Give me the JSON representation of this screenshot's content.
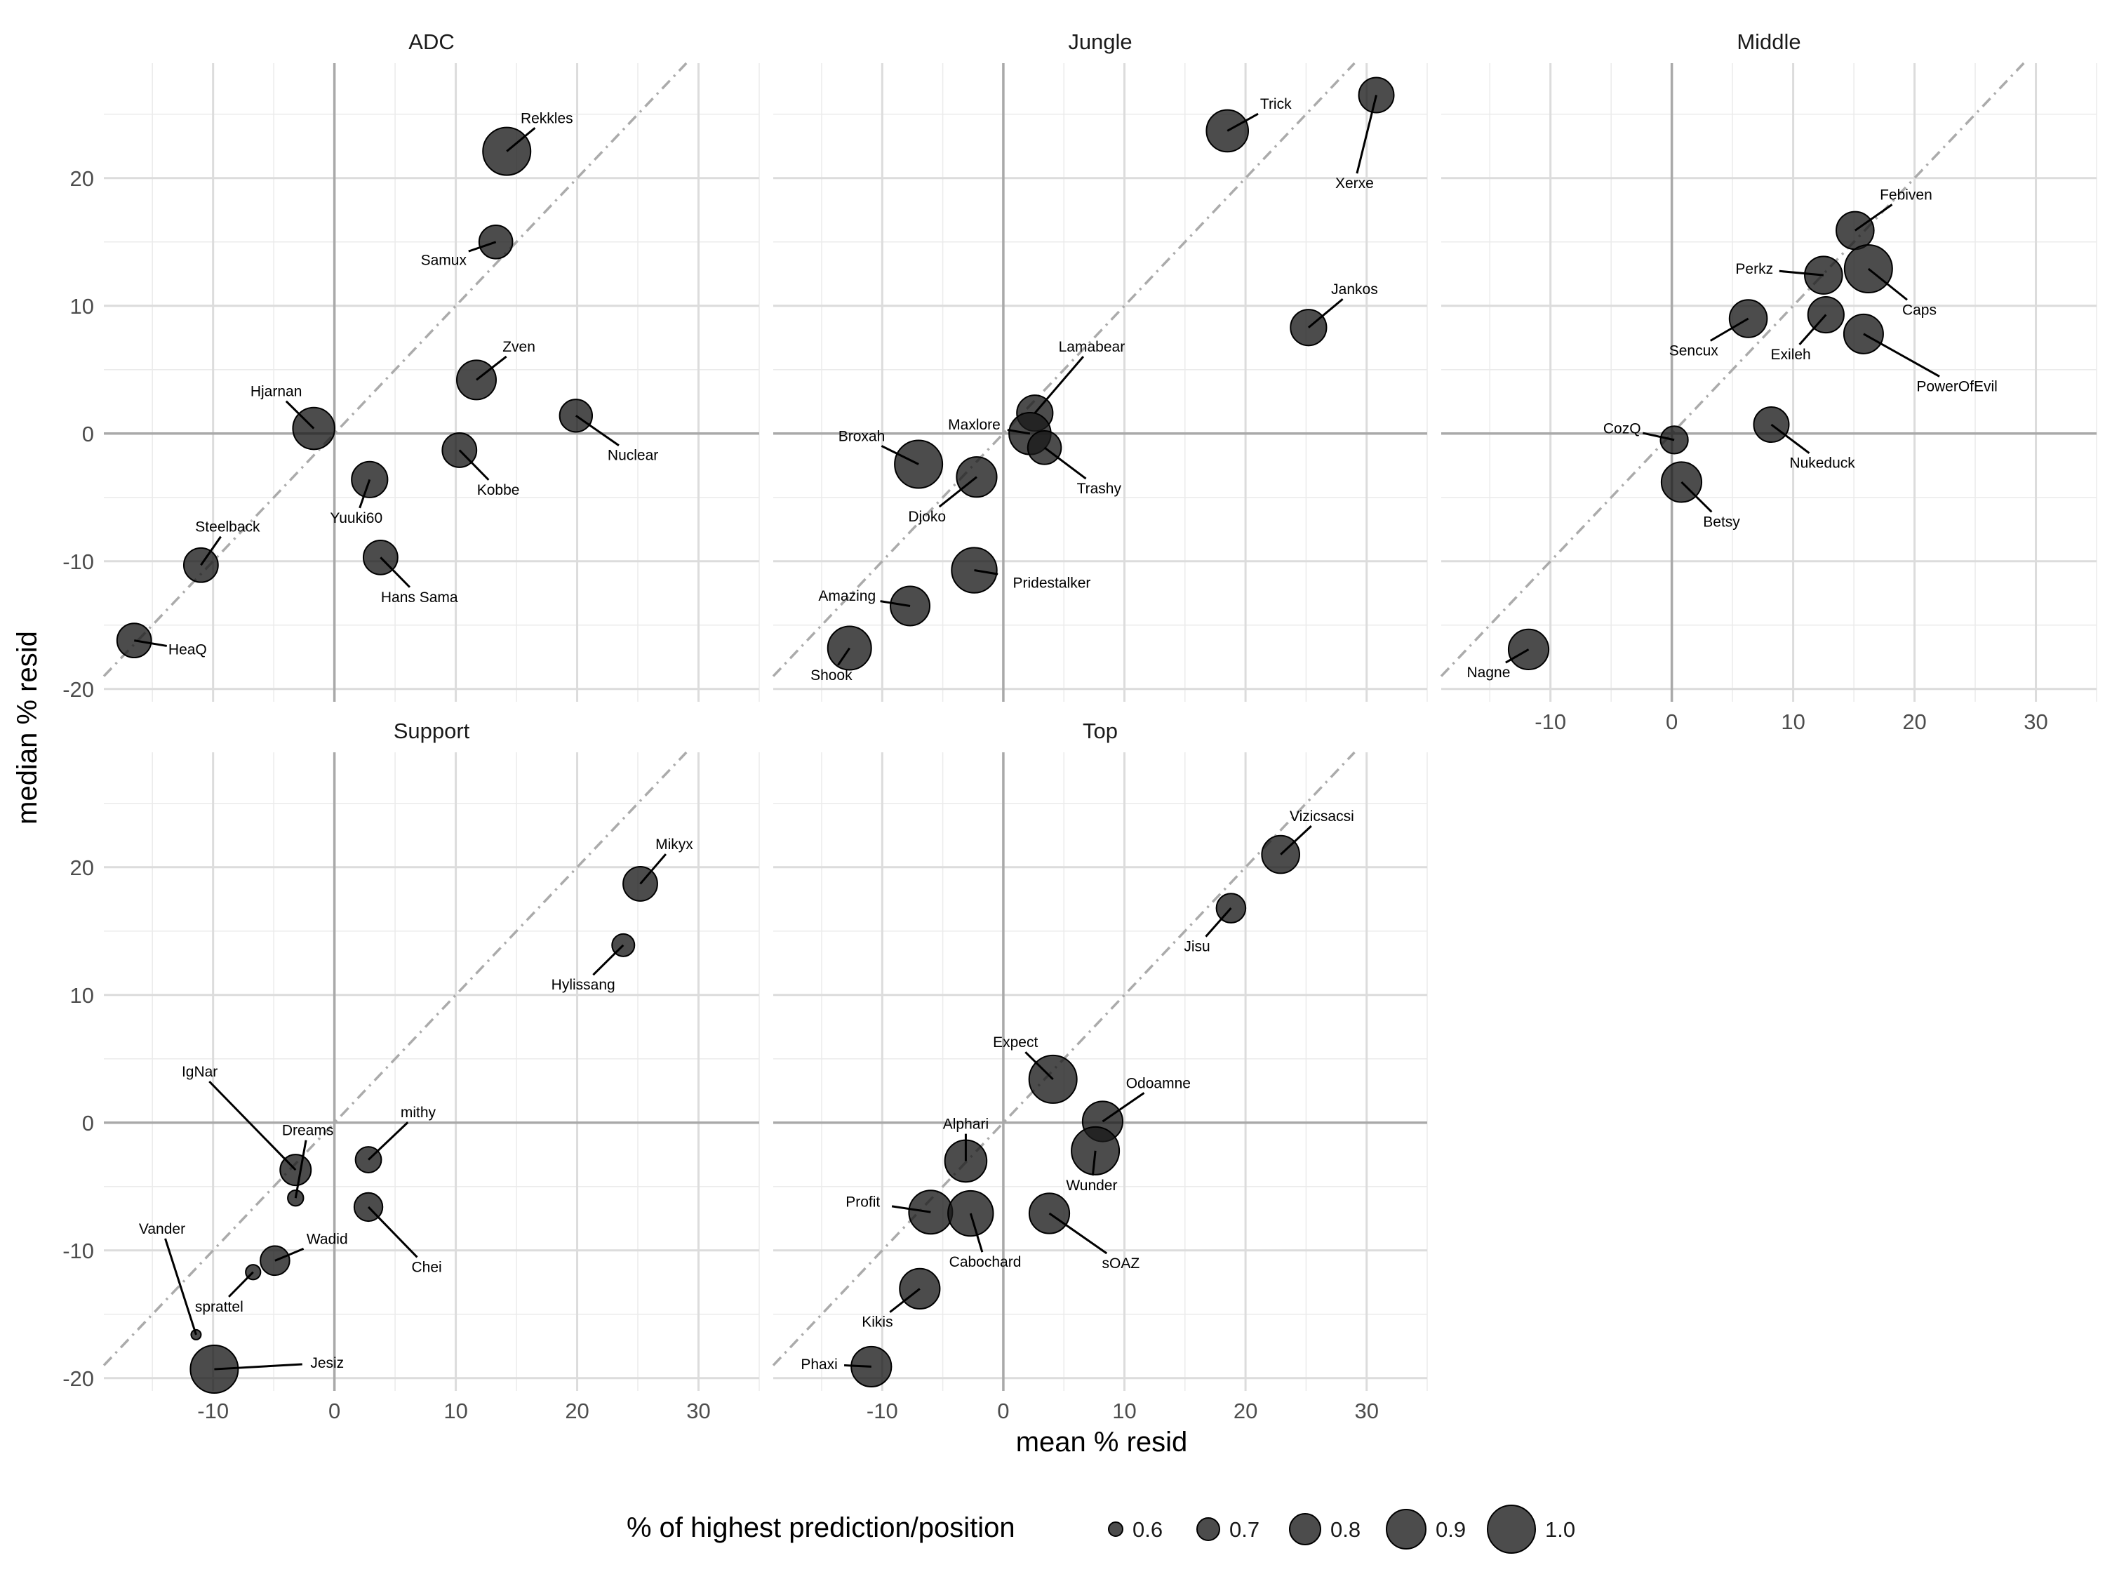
{
  "chart_data": {
    "type": "scatter",
    "xlabel": "mean % resid",
    "ylabel": "median % resid",
    "xlim": [
      -19,
      35
    ],
    "ylim": [
      -21,
      29
    ],
    "x_ticks": [
      -10,
      0,
      10,
      20,
      30
    ],
    "y_ticks": [
      -20,
      -10,
      0,
      10,
      20
    ],
    "x_tick_labels": [
      "-10",
      "0",
      "10",
      "20",
      "30"
    ],
    "y_tick_labels": [
      "-20",
      "-10",
      "0",
      "10",
      "20"
    ],
    "reference_line": "y = x (dash-dot)",
    "grid": true,
    "legend": {
      "title": "% of highest prediction/position",
      "placement": "bottom",
      "levels": [
        {
          "label": "0.6",
          "value": 0.6
        },
        {
          "label": "0.7",
          "value": 0.7
        },
        {
          "label": "0.8",
          "value": 0.8
        },
        {
          "label": "0.9",
          "value": 0.9
        },
        {
          "label": "1.0",
          "value": 1.0
        }
      ]
    },
    "panels": [
      {
        "name": "ADC",
        "points": [
          {
            "label": "Rekkles",
            "x": 14.2,
            "y": 22.1,
            "size": 1.0,
            "lx": 17.5,
            "ly": 24.7
          },
          {
            "label": "Samux",
            "x": 13.3,
            "y": 15.0,
            "size": 0.83,
            "lx": 9.0,
            "ly": 13.6
          },
          {
            "label": "Zven",
            "x": 11.7,
            "y": 4.2,
            "size": 0.9,
            "lx": 15.2,
            "ly": 6.8
          },
          {
            "label": "Hjarnan",
            "x": -1.7,
            "y": 0.4,
            "size": 0.93,
            "lx": -4.8,
            "ly": 3.3
          },
          {
            "label": "Nuclear",
            "x": 19.9,
            "y": 1.4,
            "size": 0.82,
            "lx": 24.6,
            "ly": -1.7
          },
          {
            "label": "Kobbe",
            "x": 10.3,
            "y": -1.3,
            "size": 0.84,
            "lx": 13.5,
            "ly": -4.4
          },
          {
            "label": "Yuuki60",
            "x": 2.9,
            "y": -3.6,
            "size": 0.86,
            "lx": 1.8,
            "ly": -6.6
          },
          {
            "label": "Hans Sama",
            "x": 3.8,
            "y": -9.7,
            "size": 0.84,
            "lx": 7.0,
            "ly": -12.8
          },
          {
            "label": "Steelback",
            "x": -11.0,
            "y": -10.3,
            "size": 0.84,
            "lx": -8.8,
            "ly": -7.3
          },
          {
            "label": "HeaQ",
            "x": -16.5,
            "y": -16.2,
            "size": 0.84,
            "lx": -12.1,
            "ly": -16.9
          }
        ]
      },
      {
        "name": "Jungle",
        "points": [
          {
            "label": "Trick",
            "x": 18.5,
            "y": 23.7,
            "size": 0.93,
            "lx": 22.5,
            "ly": 25.8
          },
          {
            "label": "Xerxe",
            "x": 30.8,
            "y": 26.5,
            "size": 0.85,
            "lx": 29.0,
            "ly": 19.6
          },
          {
            "label": "Jankos",
            "x": 25.2,
            "y": 8.3,
            "size": 0.86,
            "lx": 29.0,
            "ly": 11.3
          },
          {
            "label": "Lamabear",
            "x": 2.6,
            "y": 1.6,
            "size": 0.86,
            "lx": 7.3,
            "ly": 6.8
          },
          {
            "label": "Maxlore",
            "x": 2.2,
            "y": 0.0,
            "size": 0.93,
            "lx": -2.4,
            "ly": 0.7
          },
          {
            "label": "Trashy",
            "x": 3.4,
            "y": -1.1,
            "size": 0.83,
            "lx": 7.9,
            "ly": -4.3
          },
          {
            "label": "Broxah",
            "x": -7.0,
            "y": -2.4,
            "size": 1.0,
            "lx": -11.7,
            "ly": -0.2
          },
          {
            "label": "Djoko",
            "x": -2.2,
            "y": -3.4,
            "size": 0.91,
            "lx": -6.3,
            "ly": -6.5
          },
          {
            "label": "Pridestalker",
            "x": -2.4,
            "y": -10.7,
            "size": 0.97,
            "lx": 4.0,
            "ly": -11.7
          },
          {
            "label": "Amazing",
            "x": -7.7,
            "y": -13.5,
            "size": 0.9,
            "lx": -12.9,
            "ly": -12.7
          },
          {
            "label": "Shook",
            "x": -12.7,
            "y": -16.8,
            "size": 0.95,
            "lx": -14.2,
            "ly": -18.9
          }
        ]
      },
      {
        "name": "Middle",
        "points": [
          {
            "label": "Febiven",
            "x": 15.1,
            "y": 15.9,
            "size": 0.88,
            "lx": 19.3,
            "ly": 18.7
          },
          {
            "label": "Perkz",
            "x": 12.5,
            "y": 12.4,
            "size": 0.88,
            "lx": 6.8,
            "ly": 12.9
          },
          {
            "label": "Caps",
            "x": 16.2,
            "y": 12.9,
            "size": 1.0,
            "lx": 20.4,
            "ly": 9.7
          },
          {
            "label": "Sencux",
            "x": 6.3,
            "y": 9.0,
            "size": 0.88,
            "lx": 1.8,
            "ly": 6.5
          },
          {
            "label": "Exileh",
            "x": 12.7,
            "y": 9.3,
            "size": 0.86,
            "lx": 9.8,
            "ly": 6.2
          },
          {
            "label": "PowerOfEvil",
            "x": 15.8,
            "y": 7.8,
            "size": 0.9,
            "lx": 23.5,
            "ly": 3.7
          },
          {
            "label": "CozQ",
            "x": 0.2,
            "y": -0.5,
            "size": 0.76,
            "lx": -4.1,
            "ly": 0.4
          },
          {
            "label": "Nukeduck",
            "x": 8.2,
            "y": 0.7,
            "size": 0.85,
            "lx": 12.4,
            "ly": -2.3
          },
          {
            "label": "Betsy",
            "x": 0.8,
            "y": -3.8,
            "size": 0.91,
            "lx": 4.1,
            "ly": -6.9
          },
          {
            "label": "Nagne",
            "x": -11.8,
            "y": -16.9,
            "size": 0.91,
            "lx": -15.1,
            "ly": -18.7
          }
        ]
      },
      {
        "name": "Support",
        "points": [
          {
            "label": "Mikyx",
            "x": 25.2,
            "y": 18.7,
            "size": 0.84,
            "lx": 28.0,
            "ly": 21.8
          },
          {
            "label": "Hylissang",
            "x": 23.8,
            "y": 13.9,
            "size": 0.7,
            "lx": 20.5,
            "ly": 10.8
          },
          {
            "label": "IgNar",
            "x": -3.2,
            "y": -3.7,
            "size": 0.8,
            "lx": -11.1,
            "ly": 4.0
          },
          {
            "label": "Dreams",
            "x": -3.2,
            "y": -5.9,
            "size": 0.62,
            "lx": -2.2,
            "ly": -0.6
          },
          {
            "label": "mithy",
            "x": 2.8,
            "y": -2.9,
            "size": 0.74,
            "lx": 6.9,
            "ly": 0.8
          },
          {
            "label": "Chei",
            "x": 2.8,
            "y": -6.6,
            "size": 0.77,
            "lx": 7.6,
            "ly": -11.3
          },
          {
            "label": "Wadid",
            "x": -4.9,
            "y": -10.8,
            "size": 0.78,
            "lx": -0.6,
            "ly": -9.1
          },
          {
            "label": "sprattel",
            "x": -6.7,
            "y": -11.7,
            "size": 0.61,
            "lx": -9.5,
            "ly": -14.4
          },
          {
            "label": "Vander",
            "x": -11.4,
            "y": -16.6,
            "size": 0.55,
            "lx": -14.2,
            "ly": -8.3
          },
          {
            "label": "Jesiz",
            "x": -9.9,
            "y": -19.3,
            "size": 1.0,
            "lx": -0.6,
            "ly": -18.8
          }
        ]
      },
      {
        "name": "Top",
        "points": [
          {
            "label": "Vizicsacsi",
            "x": 22.9,
            "y": 21.0,
            "size": 0.88,
            "lx": 26.3,
            "ly": 24.0
          },
          {
            "label": "Jisu",
            "x": 18.8,
            "y": 16.8,
            "size": 0.78,
            "lx": 16.0,
            "ly": 13.8
          },
          {
            "label": "Expect",
            "x": 4.1,
            "y": 3.4,
            "size": 1.0,
            "lx": 1.0,
            "ly": 6.3
          },
          {
            "label": "Odoamne",
            "x": 8.2,
            "y": 0.1,
            "size": 0.91,
            "lx": 12.8,
            "ly": 3.1
          },
          {
            "label": "Wunder",
            "x": 7.6,
            "y": -2.2,
            "size": 1.0,
            "lx": 7.3,
            "ly": -4.9
          },
          {
            "label": "Alphari",
            "x": -3.1,
            "y": -3.0,
            "size": 0.93,
            "lx": -3.1,
            "ly": -0.1
          },
          {
            "label": "Profit",
            "x": -6.0,
            "y": -7.0,
            "size": 0.95,
            "lx": -11.6,
            "ly": -6.2
          },
          {
            "label": "Cabochard",
            "x": -2.7,
            "y": -7.1,
            "size": 0.97,
            "lx": -1.5,
            "ly": -10.9
          },
          {
            "label": "sOAZ",
            "x": 3.8,
            "y": -7.1,
            "size": 0.91,
            "lx": 9.7,
            "ly": -11.0
          },
          {
            "label": "Kikis",
            "x": -6.9,
            "y": -13.0,
            "size": 0.91,
            "lx": -10.4,
            "ly": -15.6
          },
          {
            "label": "Phaxi",
            "x": -10.9,
            "y": -19.1,
            "size": 0.91,
            "lx": -15.2,
            "ly": -18.9
          }
        ]
      }
    ]
  }
}
